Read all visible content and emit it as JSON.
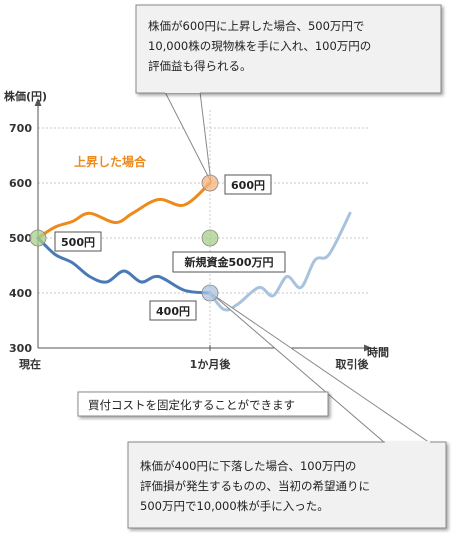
{
  "chart_data": {
    "type": "line",
    "ylabel": "株価(円)",
    "xlabel": "時間",
    "yticks": [
      700,
      600,
      500,
      400,
      300
    ],
    "ylim": [
      300,
      730
    ],
    "x_categories": [
      "現在",
      "1か月後",
      "取引後"
    ],
    "series": [
      {
        "name": "上昇した場合",
        "color": "#ee8a1c",
        "points": [
          [
            0,
            500
          ],
          [
            0.1,
            520
          ],
          [
            0.2,
            530
          ],
          [
            0.3,
            545
          ],
          [
            0.45,
            528
          ],
          [
            0.55,
            545
          ],
          [
            0.7,
            570
          ],
          [
            0.85,
            560
          ],
          [
            1.0,
            600
          ]
        ]
      },
      {
        "name": "",
        "color": "#4a7ab5",
        "points": [
          [
            0,
            500
          ],
          [
            0.1,
            470
          ],
          [
            0.2,
            455
          ],
          [
            0.3,
            430
          ],
          [
            0.4,
            420
          ],
          [
            0.5,
            440
          ],
          [
            0.6,
            420
          ],
          [
            0.7,
            430
          ],
          [
            0.85,
            405
          ],
          [
            1.0,
            400
          ]
        ]
      },
      {
        "name": "",
        "color": "#a9c3de",
        "points": [
          [
            1.0,
            400
          ],
          [
            1.1,
            370
          ],
          [
            1.2,
            380
          ],
          [
            1.35,
            410
          ],
          [
            1.45,
            395
          ],
          [
            1.55,
            430
          ],
          [
            1.65,
            410
          ],
          [
            1.75,
            460
          ],
          [
            1.85,
            470
          ],
          [
            2.0,
            545
          ]
        ]
      }
    ],
    "markers": [
      {
        "x": 0,
        "y": 500,
        "color": "#a8cf8a",
        "label": "500円"
      },
      {
        "x": 1.0,
        "y": 600,
        "color": "#f6b37e",
        "label": "600円"
      },
      {
        "x": 1.0,
        "y": 500,
        "color": "#a8cf8a",
        "label": "新規資金500万円"
      },
      {
        "x": 1.0,
        "y": 400,
        "color": "#a9c3de",
        "label": "400円"
      }
    ],
    "series_label": "上昇した場合"
  },
  "callouts": {
    "top": [
      "株価が600円に上昇した場合、500万円で",
      "10,000株の現物株を手に入れ、100万円の",
      "評価益も得られる。"
    ],
    "bottom": [
      "株価が400円に下落した場合、100万円の",
      "評価損が発生するものの、当初の希望通りに",
      "500万円で10,000株が手に入った。"
    ],
    "middle": "買付コストを固定化することができます"
  }
}
